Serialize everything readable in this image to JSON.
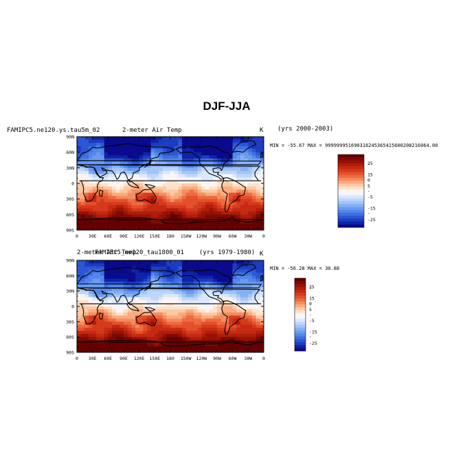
{
  "page": {
    "title": "DJF-JJA"
  },
  "colors": {
    "levels": [
      -30,
      -27.5,
      -25,
      -22.5,
      -20,
      -17.5,
      -15,
      -12.5,
      -10,
      -7.5,
      -5,
      -2.5,
      0,
      2.5,
      5,
      7.5,
      10,
      12.5,
      15,
      17.5,
      20,
      22.5,
      25,
      27.5,
      30
    ],
    "palette": [
      "#0a0a8c",
      "#0d24a8",
      "#1e3cc0",
      "#2b57d4",
      "#3d6fe0",
      "#5386ea",
      "#6a9bf0",
      "#85b0f4",
      "#a2c4f7",
      "#bfd6fa",
      "#dbe8fc",
      "#f2f6ff",
      "#fff5ee",
      "#fde2cc",
      "#fbc9a6",
      "#f8ac80",
      "#f48d5f",
      "#ee6b40",
      "#e4502b",
      "#d63a1c",
      "#c52a12",
      "#b01d0a",
      "#961205",
      "#7c0a02",
      "#660000"
    ],
    "land": "#000000"
  },
  "chart_data": [
    {
      "type": "heatmap",
      "title_left": "FAMIPC5.ne120.ys.tau5m_02",
      "title_center": "2-meter Air Temp",
      "units": "K",
      "years": "(yrs 2000-2003)",
      "stats": "MIN = -55.67  MAX = 999999951690316245365415600208216064.00",
      "x_ticks": [
        "0",
        "30E",
        "60E",
        "90E",
        "120E",
        "150E",
        "180",
        "150W",
        "120W",
        "90W",
        "60W",
        "30W",
        "0"
      ],
      "y_ticks": [
        "90N",
        "60N",
        "30N",
        "0",
        "30S",
        "60S",
        "90S"
      ],
      "colorbar_labels": [
        "25",
        "15",
        "5",
        "-5",
        "-15",
        "-25"
      ],
      "colorbar_minor": [
        "",
        "-",
        "",
        "",
        "0",
        "",
        "-",
        "",
        "",
        "",
        "-",
        "",
        ""
      ],
      "lon_range": [
        0,
        360
      ],
      "lat_range": [
        -90,
        90
      ]
    },
    {
      "type": "heatmap",
      "title_left": "FAMIPC5_ne120_tau1800_01",
      "title_center": "2-meter Air Temp",
      "units": "K",
      "years": "(yrs 1979-1980)",
      "stats": "MIN = -56.28  MAX =  30.88",
      "x_ticks": [
        "0",
        "30E",
        "60E",
        "90E",
        "120E",
        "150E",
        "180",
        "150W",
        "120W",
        "90W",
        "60W",
        "30W",
        "0"
      ],
      "y_ticks": [
        "90N",
        "60N",
        "30N",
        "0",
        "30S",
        "60S",
        "90S"
      ],
      "colorbar_labels": [
        "25",
        "15",
        "5",
        "-5",
        "-15",
        "-25"
      ],
      "colorbar_minor": [
        "",
        "-",
        "",
        "",
        "0",
        "",
        "-",
        "",
        "",
        "",
        "-",
        "",
        ""
      ],
      "lon_range": [
        0,
        360
      ],
      "lat_range": [
        -90,
        90
      ]
    }
  ]
}
